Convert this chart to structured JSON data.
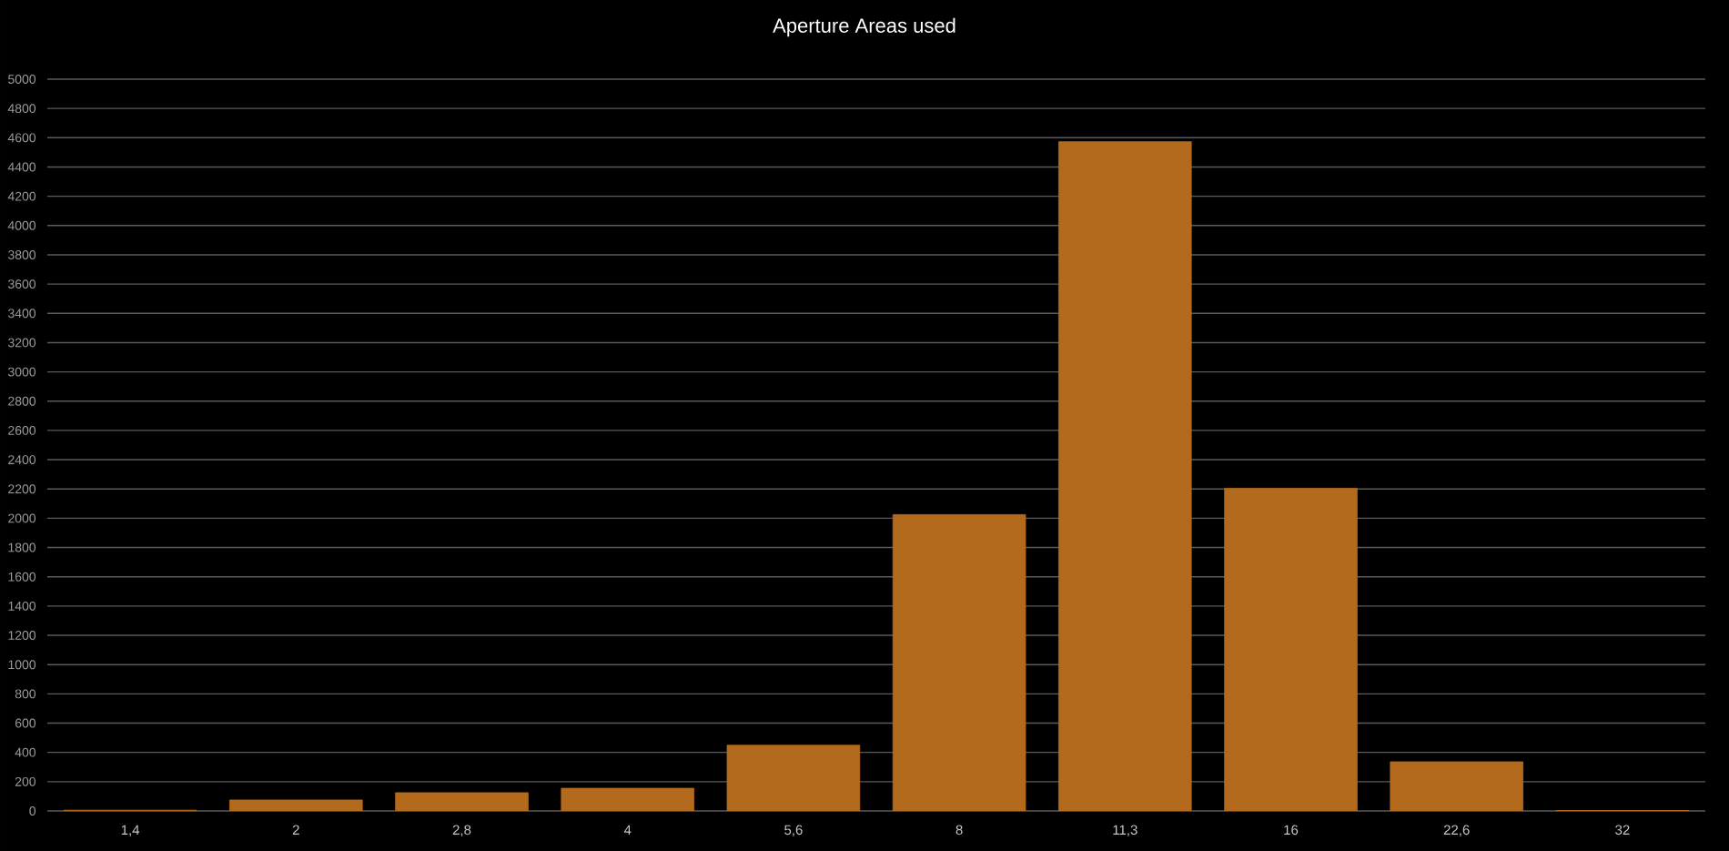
{
  "chart_data": {
    "type": "bar",
    "title": "Aperture Areas used",
    "categories": [
      "1,4",
      "2",
      "2,8",
      "4",
      "5,6",
      "8",
      "11,3",
      "16",
      "22,6",
      "32"
    ],
    "values": [
      5,
      75,
      125,
      155,
      449,
      2025,
      4573,
      2205,
      336,
      3
    ],
    "color": "#b36a1c",
    "ylim": [
      0,
      5000
    ],
    "yticks": [
      0,
      200,
      400,
      600,
      800,
      1000,
      1200,
      1400,
      1600,
      1800,
      2000,
      2200,
      2400,
      2600,
      2800,
      3000,
      3200,
      3400,
      3600,
      3800,
      4000,
      4200,
      4400,
      4600,
      4800,
      5000
    ],
    "grid": "y"
  }
}
